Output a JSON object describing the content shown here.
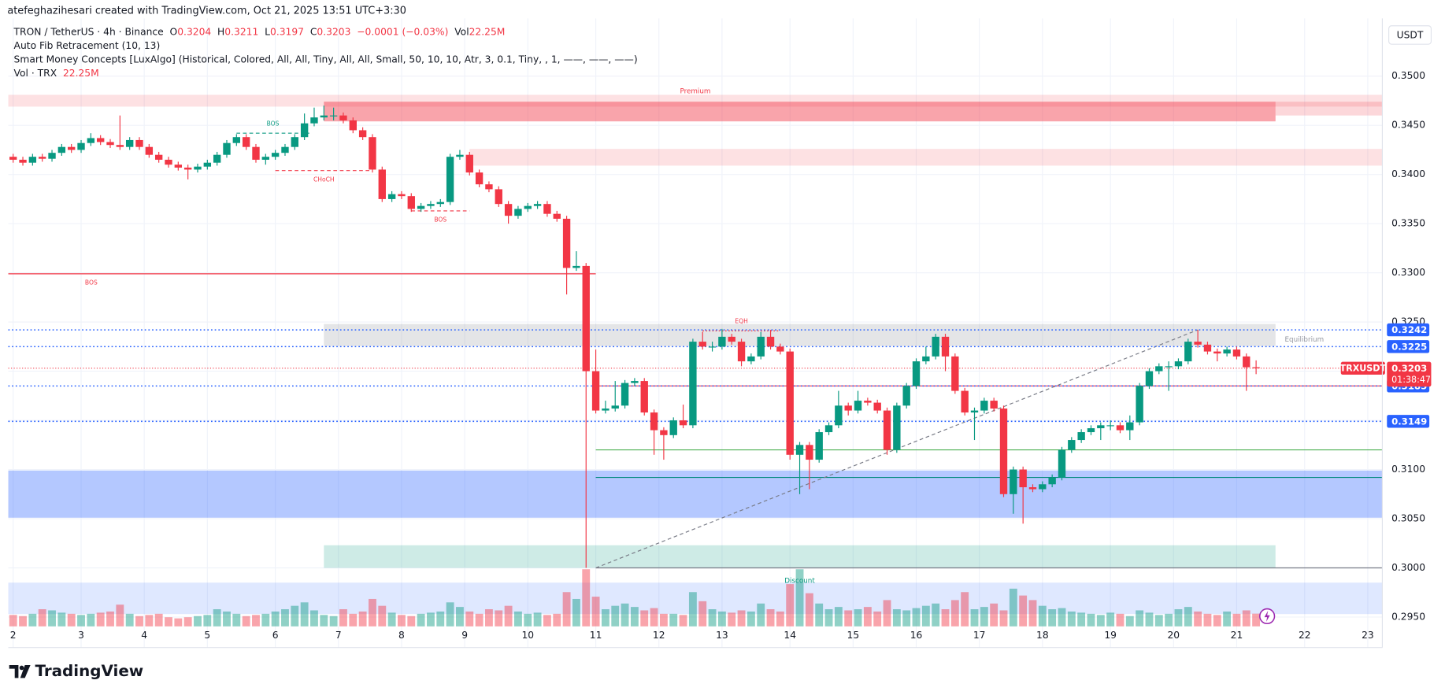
{
  "watermark_line": "atefeghazihesari created with TradingView.com, Oct 21, 2025 13:51 UTC+3:30",
  "brand": "TradingView",
  "chart_data": {
    "type": "candlestick",
    "title": "TRON / TetherUS · 4h · Binance",
    "legend_labels": {
      "open": "O",
      "high": "H",
      "low": "L",
      "close": "C",
      "volume": "Vol"
    },
    "change": "−0.0001 (−0.03%)",
    "volume_label": "22.25M",
    "indicators": [
      "Auto Fib Retracement (10, 13)",
      "Smart Money Concepts [LuxAlgo] (Historical, Colored, All, All, Tiny, All, All, Small, 50, 10, 10, Atr, 3, 0.1, Tiny, , 1, ——, ——, ——)"
    ],
    "volume_title": "Vol · TRX",
    "currency": "USDT",
    "colors": {
      "up": "#089981",
      "down": "#f23645"
    },
    "ohlc": [
      [
        0.3418,
        0.3421,
        0.3412,
        0.3415
      ],
      [
        0.3415,
        0.3418,
        0.3409,
        0.3412
      ],
      [
        0.3412,
        0.3421,
        0.3409,
        0.3418
      ],
      [
        0.3418,
        0.3421,
        0.3413,
        0.3416
      ],
      [
        0.3416,
        0.3425,
        0.3413,
        0.3422
      ],
      [
        0.3422,
        0.3431,
        0.3419,
        0.3428
      ],
      [
        0.3428,
        0.3431,
        0.3422,
        0.3425
      ],
      [
        0.3425,
        0.3435,
        0.3422,
        0.3432
      ],
      [
        0.3432,
        0.3442,
        0.3429,
        0.3437
      ],
      [
        0.3437,
        0.344,
        0.343,
        0.3433
      ],
      [
        0.3433,
        0.3436,
        0.3427,
        0.343
      ],
      [
        0.343,
        0.346,
        0.3425,
        0.3428
      ],
      [
        0.3428,
        0.3438,
        0.3425,
        0.3435
      ],
      [
        0.3435,
        0.3438,
        0.3425,
        0.3428
      ],
      [
        0.3428,
        0.3431,
        0.3417,
        0.342
      ],
      [
        0.342,
        0.3423,
        0.3412,
        0.3415
      ],
      [
        0.3415,
        0.3418,
        0.3407,
        0.341
      ],
      [
        0.341,
        0.3413,
        0.3404,
        0.3407
      ],
      [
        0.3407,
        0.341,
        0.3395,
        0.3405
      ],
      [
        0.3405,
        0.3411,
        0.3402,
        0.3408
      ],
      [
        0.3408,
        0.3415,
        0.3405,
        0.3412
      ],
      [
        0.3412,
        0.3423,
        0.3409,
        0.342
      ],
      [
        0.342,
        0.3435,
        0.3417,
        0.3432
      ],
      [
        0.3432,
        0.3441,
        0.3429,
        0.3438
      ],
      [
        0.3438,
        0.3441,
        0.3425,
        0.3428
      ],
      [
        0.3428,
        0.3431,
        0.3412,
        0.3415
      ],
      [
        0.3415,
        0.3421,
        0.341,
        0.3418
      ],
      [
        0.3418,
        0.3425,
        0.3415,
        0.3422
      ],
      [
        0.3422,
        0.3431,
        0.3419,
        0.3428
      ],
      [
        0.3428,
        0.3441,
        0.3425,
        0.3438
      ],
      [
        0.3438,
        0.3462,
        0.3435,
        0.3452
      ],
      [
        0.3452,
        0.3468,
        0.3449,
        0.3458
      ],
      [
        0.3458,
        0.347,
        0.3455,
        0.346
      ],
      [
        0.346,
        0.3468,
        0.3455,
        0.346
      ],
      [
        0.346,
        0.3463,
        0.3452,
        0.3455
      ],
      [
        0.3455,
        0.3458,
        0.3442,
        0.3445
      ],
      [
        0.3445,
        0.3448,
        0.3435,
        0.3438
      ],
      [
        0.3438,
        0.3441,
        0.3402,
        0.3405
      ],
      [
        0.3405,
        0.3408,
        0.3372,
        0.3375
      ],
      [
        0.3375,
        0.3383,
        0.3372,
        0.338
      ],
      [
        0.338,
        0.3383,
        0.3375,
        0.3378
      ],
      [
        0.3378,
        0.3381,
        0.3362,
        0.3365
      ],
      [
        0.3365,
        0.3371,
        0.3362,
        0.3368
      ],
      [
        0.3368,
        0.3373,
        0.3365,
        0.337
      ],
      [
        0.337,
        0.3375,
        0.3367,
        0.3372
      ],
      [
        0.3372,
        0.3421,
        0.3369,
        0.3418
      ],
      [
        0.3418,
        0.3425,
        0.3415,
        0.342
      ],
      [
        0.342,
        0.3423,
        0.3399,
        0.3402
      ],
      [
        0.3402,
        0.3405,
        0.3387,
        0.339
      ],
      [
        0.339,
        0.3393,
        0.3382,
        0.3385
      ],
      [
        0.3385,
        0.3388,
        0.3367,
        0.337
      ],
      [
        0.337,
        0.3373,
        0.335,
        0.3358
      ],
      [
        0.3358,
        0.3368,
        0.3355,
        0.3365
      ],
      [
        0.3365,
        0.3371,
        0.3362,
        0.3368
      ],
      [
        0.3368,
        0.3373,
        0.3365,
        0.337
      ],
      [
        0.337,
        0.3373,
        0.3357,
        0.336
      ],
      [
        0.336,
        0.3363,
        0.3352,
        0.3355
      ],
      [
        0.3355,
        0.3358,
        0.3278,
        0.3305
      ],
      [
        0.3305,
        0.3322,
        0.3302,
        0.3307
      ],
      [
        0.3307,
        0.331,
        0.3,
        0.32
      ],
      [
        0.32,
        0.3222,
        0.3157,
        0.316
      ],
      [
        0.316,
        0.317,
        0.3157,
        0.3162
      ],
      [
        0.3162,
        0.319,
        0.3159,
        0.3165
      ],
      [
        0.3165,
        0.3191,
        0.3162,
        0.3188
      ],
      [
        0.3188,
        0.3193,
        0.3185,
        0.319
      ],
      [
        0.319,
        0.3193,
        0.3155,
        0.3158
      ],
      [
        0.3158,
        0.3161,
        0.3115,
        0.314
      ],
      [
        0.314,
        0.3143,
        0.311,
        0.3135
      ],
      [
        0.3135,
        0.3153,
        0.3132,
        0.315
      ],
      [
        0.315,
        0.3166,
        0.3142,
        0.3145
      ],
      [
        0.3145,
        0.3233,
        0.3142,
        0.323
      ],
      [
        0.323,
        0.324,
        0.3222,
        0.3225
      ],
      [
        0.3225,
        0.323,
        0.322,
        0.3225
      ],
      [
        0.3225,
        0.3243,
        0.3222,
        0.3235
      ],
      [
        0.3235,
        0.3238,
        0.3227,
        0.323
      ],
      [
        0.323,
        0.3233,
        0.3205,
        0.321
      ],
      [
        0.321,
        0.3218,
        0.3207,
        0.3215
      ],
      [
        0.3215,
        0.324,
        0.3212,
        0.3235
      ],
      [
        0.3235,
        0.3242,
        0.3222,
        0.3225
      ],
      [
        0.3225,
        0.3228,
        0.3217,
        0.322
      ],
      [
        0.322,
        0.3223,
        0.311,
        0.3115
      ],
      [
        0.3115,
        0.3128,
        0.3075,
        0.3125
      ],
      [
        0.3125,
        0.3128,
        0.308,
        0.311
      ],
      [
        0.311,
        0.3141,
        0.3107,
        0.3138
      ],
      [
        0.3138,
        0.3148,
        0.3135,
        0.3145
      ],
      [
        0.3145,
        0.318,
        0.3142,
        0.3165
      ],
      [
        0.3165,
        0.3168,
        0.3155,
        0.316
      ],
      [
        0.316,
        0.318,
        0.3157,
        0.317
      ],
      [
        0.317,
        0.3173,
        0.3165,
        0.3168
      ],
      [
        0.3168,
        0.3171,
        0.3157,
        0.316
      ],
      [
        0.316,
        0.3163,
        0.3115,
        0.312
      ],
      [
        0.312,
        0.3168,
        0.3117,
        0.3165
      ],
      [
        0.3165,
        0.3188,
        0.3162,
        0.3185
      ],
      [
        0.3185,
        0.3213,
        0.3182,
        0.321
      ],
      [
        0.321,
        0.3225,
        0.3207,
        0.3215
      ],
      [
        0.3215,
        0.3238,
        0.3212,
        0.3235
      ],
      [
        0.3235,
        0.3238,
        0.32,
        0.3215
      ],
      [
        0.3215,
        0.3218,
        0.3177,
        0.318
      ],
      [
        0.318,
        0.3183,
        0.3155,
        0.3158
      ],
      [
        0.3158,
        0.3163,
        0.313,
        0.316
      ],
      [
        0.316,
        0.3173,
        0.3157,
        0.317
      ],
      [
        0.317,
        0.3173,
        0.3159,
        0.3162
      ],
      [
        0.3162,
        0.3165,
        0.3072,
        0.3075
      ],
      [
        0.3075,
        0.3103,
        0.3055,
        0.31
      ],
      [
        0.31,
        0.3103,
        0.3045,
        0.3082
      ],
      [
        0.3082,
        0.3085,
        0.3077,
        0.308
      ],
      [
        0.308,
        0.3088,
        0.3077,
        0.3085
      ],
      [
        0.3085,
        0.3095,
        0.3082,
        0.3092
      ],
      [
        0.3092,
        0.3123,
        0.3089,
        0.312
      ],
      [
        0.312,
        0.3133,
        0.3117,
        0.313
      ],
      [
        0.313,
        0.3141,
        0.3127,
        0.3138
      ],
      [
        0.3138,
        0.3145,
        0.3135,
        0.3142
      ],
      [
        0.3142,
        0.3148,
        0.313,
        0.3145
      ],
      [
        0.3145,
        0.315,
        0.314,
        0.3145
      ],
      [
        0.3145,
        0.3148,
        0.3137,
        0.314
      ],
      [
        0.314,
        0.3155,
        0.313,
        0.3148
      ],
      [
        0.3148,
        0.3188,
        0.3145,
        0.3185
      ],
      [
        0.3185,
        0.3203,
        0.3182,
        0.32
      ],
      [
        0.32,
        0.3208,
        0.3197,
        0.3205
      ],
      [
        0.3205,
        0.321,
        0.318,
        0.3205
      ],
      [
        0.3205,
        0.3213,
        0.3202,
        0.321
      ],
      [
        0.321,
        0.3233,
        0.3207,
        0.323
      ],
      [
        0.323,
        0.3242,
        0.3224,
        0.3227
      ],
      [
        0.3227,
        0.323,
        0.3217,
        0.322
      ],
      [
        0.322,
        0.3223,
        0.321,
        0.3218
      ],
      [
        0.3218,
        0.3225,
        0.3215,
        0.3222
      ],
      [
        0.3222,
        0.3225,
        0.3212,
        0.3215
      ],
      [
        0.3215,
        0.3218,
        0.318,
        0.3204
      ],
      [
        0.3204,
        0.3211,
        0.3197,
        0.3203
      ]
    ],
    "volume": [
      20,
      18,
      22,
      30,
      28,
      24,
      22,
      20,
      22,
      24,
      26,
      38,
      22,
      18,
      20,
      22,
      16,
      14,
      16,
      18,
      20,
      30,
      26,
      22,
      18,
      20,
      22,
      26,
      30,
      36,
      42,
      28,
      20,
      18,
      30,
      22,
      26,
      48,
      36,
      24,
      20,
      18,
      22,
      24,
      26,
      42,
      34,
      26,
      22,
      30,
      28,
      36,
      26,
      22,
      24,
      20,
      22,
      60,
      48,
      100,
      52,
      30,
      36,
      40,
      34,
      28,
      32,
      22,
      22,
      20,
      60,
      44,
      30,
      26,
      24,
      28,
      26,
      40,
      30,
      26,
      74,
      100,
      58,
      40,
      30,
      34,
      28,
      30,
      34,
      26,
      46,
      30,
      28,
      32,
      36,
      40,
      30,
      46,
      60,
      30,
      34,
      40,
      28,
      66,
      54,
      46,
      36,
      30,
      32,
      26,
      24,
      22,
      20,
      24,
      22,
      18,
      28,
      24,
      20,
      22,
      30,
      34,
      26,
      22,
      20,
      26,
      22,
      28,
      22.25
    ],
    "xlim": [
      -0.5,
      141
    ],
    "xticks": [
      {
        "value": 0,
        "label": "2"
      },
      {
        "value": 7,
        "label": "3"
      },
      {
        "value": 13.5,
        "label": "4"
      },
      {
        "value": 20,
        "label": "5"
      },
      {
        "value": 27,
        "label": "6"
      },
      {
        "value": 33.5,
        "label": "7"
      },
      {
        "value": 40,
        "label": "8"
      },
      {
        "value": 46.5,
        "label": "9"
      },
      {
        "value": 53,
        "label": "10"
      },
      {
        "value": 60,
        "label": "11"
      },
      {
        "value": 66.5,
        "label": "12"
      },
      {
        "value": 73,
        "label": "13"
      },
      {
        "value": 80,
        "label": "14"
      },
      {
        "value": 86.5,
        "label": "15"
      },
      {
        "value": 93,
        "label": "16"
      },
      {
        "value": 99.5,
        "label": "17"
      },
      {
        "value": 106,
        "label": "18"
      },
      {
        "value": 113,
        "label": "19"
      },
      {
        "value": 119.5,
        "label": "20"
      },
      {
        "value": 126,
        "label": "21"
      },
      {
        "value": 133,
        "label": "22"
      },
      {
        "value": 139.5,
        "label": "23"
      }
    ],
    "ylim": [
      0.2919,
      0.3554
    ],
    "yticks": [
      {
        "value": 0.295,
        "label": "0.2950"
      },
      {
        "value": 0.3,
        "label": "0.3000"
      },
      {
        "value": 0.305,
        "label": "0.3050"
      },
      {
        "value": 0.31,
        "label": "0.3100"
      },
      {
        "value": 0.315,
        "label": "0.3150"
      },
      {
        "value": 0.32,
        "label": "0.3200"
      },
      {
        "value": 0.325,
        "label": "0.3250"
      },
      {
        "value": 0.33,
        "label": "0.3300"
      },
      {
        "value": 0.335,
        "label": "0.3350"
      },
      {
        "value": 0.34,
        "label": "0.3400"
      },
      {
        "value": 0.345,
        "label": "0.3450"
      },
      {
        "value": 0.35,
        "label": "0.3500"
      }
    ],
    "grid": true,
    "levels": [
      0.3242,
      0.3225,
      0.3185,
      0.3149
    ],
    "level_color": "#2962ff",
    "last": {
      "name": "TRXUSDT",
      "price": 0.3203,
      "countdown": "01:38:47",
      "color": "#f23645"
    },
    "zones": [
      {
        "from": -0.5,
        "to": 141,
        "top": 0.3481,
        "bottom": 0.3469,
        "color": "#f23645",
        "opacity": 0.15,
        "label": "Premium"
      },
      {
        "from": 32,
        "to": 130,
        "top": 0.3474,
        "bottom": 0.3454,
        "color": "#f23645",
        "opacity": 0.45
      },
      {
        "from": 130,
        "to": 141,
        "top": 0.3474,
        "bottom": 0.346,
        "color": "#f23645",
        "opacity": 0.2
      },
      {
        "from": 47,
        "to": 141,
        "top": 0.3426,
        "bottom": 0.3409,
        "color": "#f23645",
        "opacity": 0.15
      },
      {
        "from": 32,
        "to": 130,
        "top": 0.3248,
        "bottom": 0.32255,
        "color": "#787b86",
        "opacity": 0.2,
        "label": "Equilibrium"
      },
      {
        "from": -0.5,
        "to": 141,
        "top": 0.3099,
        "bottom": 0.3051,
        "color": "#2962ff",
        "opacity": 0.35
      },
      {
        "from": 32,
        "to": 130,
        "top": 0.3023,
        "bottom": 0.3,
        "color": "#089981",
        "opacity": 0.2,
        "label": "Discount"
      },
      {
        "from": -0.5,
        "to": 141,
        "top": 0.2985,
        "bottom": 0.2953,
        "color": "#2962ff",
        "opacity": 0.15
      }
    ],
    "structures": [
      {
        "label": "BOS",
        "price": 0.3442,
        "from": 23,
        "to": 30.5,
        "color": "#089981",
        "style": "dashed"
      },
      {
        "label": "CHoCH",
        "price": 0.3404,
        "from": 27,
        "to": 37,
        "color": "#f23645",
        "style": "dashed"
      },
      {
        "label": "BOS",
        "price": 0.3363,
        "from": 41,
        "to": 47,
        "color": "#f23645",
        "style": "dashed"
      },
      {
        "label": "BOS",
        "price": 0.3299,
        "from": -0.5,
        "to": 60,
        "color": "#f23645",
        "style": "solid"
      },
      {
        "label": "EQH",
        "price": 0.3241,
        "from": 71,
        "to": 79,
        "color": "#f23645",
        "style": "dotted"
      }
    ],
    "lines": [
      {
        "price": 0.3185,
        "from": 60,
        "to": 141,
        "color": "#f23645"
      },
      {
        "price": 0.312,
        "from": 60,
        "to": 141,
        "color": "#4caf50"
      },
      {
        "price": 0.3092,
        "from": 60,
        "to": 141,
        "color": "#00897b"
      },
      {
        "price": 0.3,
        "from": 60,
        "to": 141,
        "color": "#787b86"
      }
    ],
    "fib": {
      "from": [
        60,
        0.3
      ],
      "to": [
        122,
        0.3242
      ],
      "color": "#787b86"
    }
  }
}
